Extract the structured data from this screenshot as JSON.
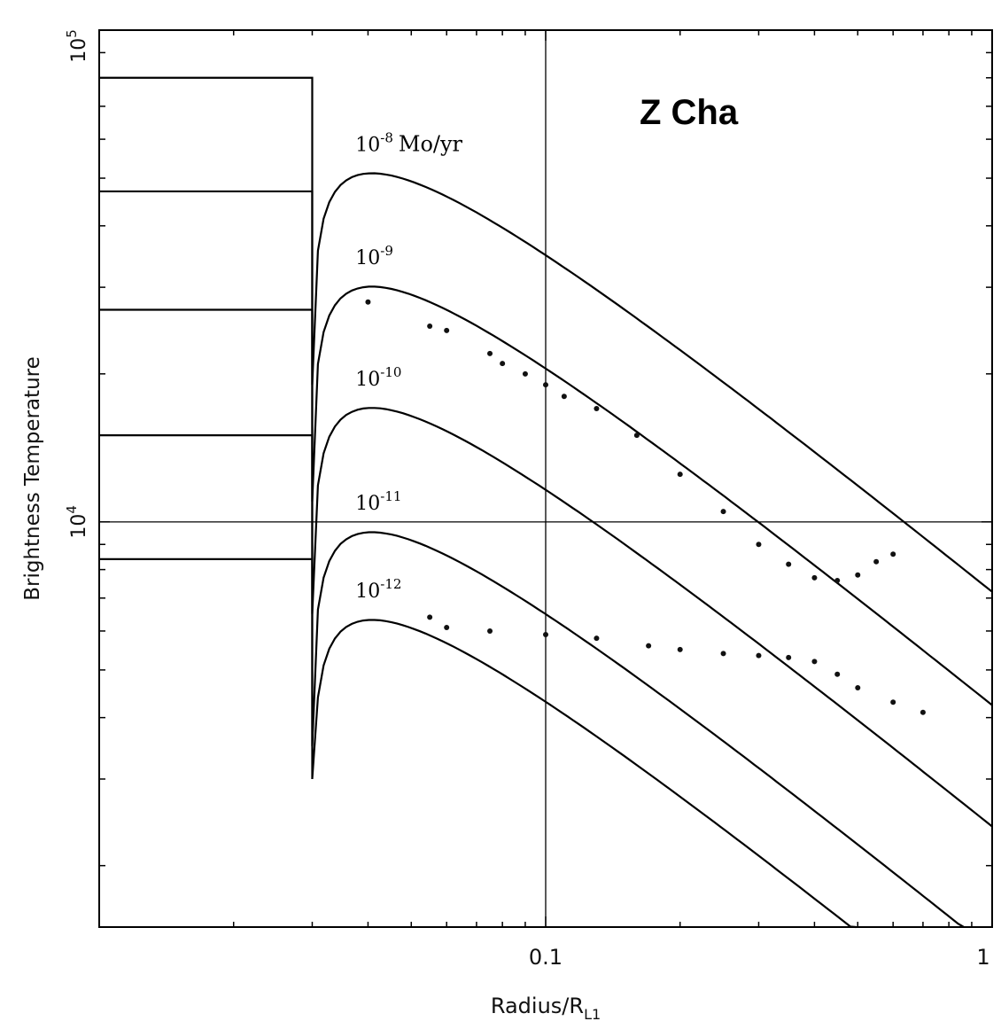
{
  "chart_data": {
    "type": "line",
    "title": "Z Cha",
    "xlabel": "Radius/R",
    "xlabel_sub": "L1",
    "ylabel": "Brightness Temperature",
    "x_scale": "log",
    "y_scale": "log",
    "xlim": [
      0.01,
      1
    ],
    "ylim": [
      1500,
      100000
    ],
    "x_ticks": [
      {
        "value": 0.1,
        "label": "0.1"
      },
      {
        "value": 1,
        "label": "1"
      }
    ],
    "y_ticks": [
      {
        "value": 10000,
        "base": "10",
        "exp": "4"
      },
      {
        "value": 100000,
        "base": "10",
        "exp": "5"
      }
    ],
    "gridlines": {
      "x": [
        0.1
      ],
      "y": [
        10000
      ]
    },
    "inner_radius": 0.03,
    "series": [
      {
        "name": "10",
        "exp": "-8",
        "suffix": "Mo/yr",
        "plateau": 80000,
        "peak": 51000,
        "peak_r": 0.043,
        "dip": 19000
      },
      {
        "name": "10",
        "exp": "-9",
        "suffix": "",
        "plateau": 47000,
        "peak": 30000,
        "peak_r": 0.043,
        "dip": 11000
      },
      {
        "name": "10",
        "exp": "-10",
        "suffix": "",
        "plateau": 27000,
        "peak": 17000,
        "peak_r": 0.043,
        "dip": 6500
      },
      {
        "name": "10",
        "exp": "-11",
        "suffix": "",
        "plateau": 15000,
        "peak": 9500,
        "peak_r": 0.043,
        "dip": 3500
      },
      {
        "name": "10",
        "exp": "-12",
        "suffix": "",
        "plateau": 8400,
        "peak": 6300,
        "peak_r": 0.043,
        "dip": 3000
      }
    ],
    "observed_outburst": [
      {
        "x": 0.04,
        "y": 28000
      },
      {
        "x": 0.055,
        "y": 25000
      },
      {
        "x": 0.06,
        "y": 24500
      },
      {
        "x": 0.075,
        "y": 22000
      },
      {
        "x": 0.08,
        "y": 21000
      },
      {
        "x": 0.09,
        "y": 20000
      },
      {
        "x": 0.1,
        "y": 19000
      },
      {
        "x": 0.11,
        "y": 18000
      },
      {
        "x": 0.13,
        "y": 17000
      },
      {
        "x": 0.16,
        "y": 15000
      },
      {
        "x": 0.2,
        "y": 12500
      },
      {
        "x": 0.25,
        "y": 10500
      },
      {
        "x": 0.3,
        "y": 9000
      },
      {
        "x": 0.35,
        "y": 8200
      },
      {
        "x": 0.4,
        "y": 7700
      },
      {
        "x": 0.45,
        "y": 7600
      },
      {
        "x": 0.5,
        "y": 7800
      },
      {
        "x": 0.55,
        "y": 8300
      },
      {
        "x": 0.6,
        "y": 8600
      }
    ],
    "observed_quiescence": [
      {
        "x": 0.055,
        "y": 6400
      },
      {
        "x": 0.06,
        "y": 6100
      },
      {
        "x": 0.075,
        "y": 6000
      },
      {
        "x": 0.1,
        "y": 5900
      },
      {
        "x": 0.13,
        "y": 5800
      },
      {
        "x": 0.17,
        "y": 5600
      },
      {
        "x": 0.2,
        "y": 5500
      },
      {
        "x": 0.25,
        "y": 5400
      },
      {
        "x": 0.3,
        "y": 5350
      },
      {
        "x": 0.35,
        "y": 5300
      },
      {
        "x": 0.4,
        "y": 5200
      },
      {
        "x": 0.45,
        "y": 4900
      },
      {
        "x": 0.5,
        "y": 4600
      },
      {
        "x": 0.6,
        "y": 4300
      },
      {
        "x": 0.7,
        "y": 4100
      }
    ]
  }
}
